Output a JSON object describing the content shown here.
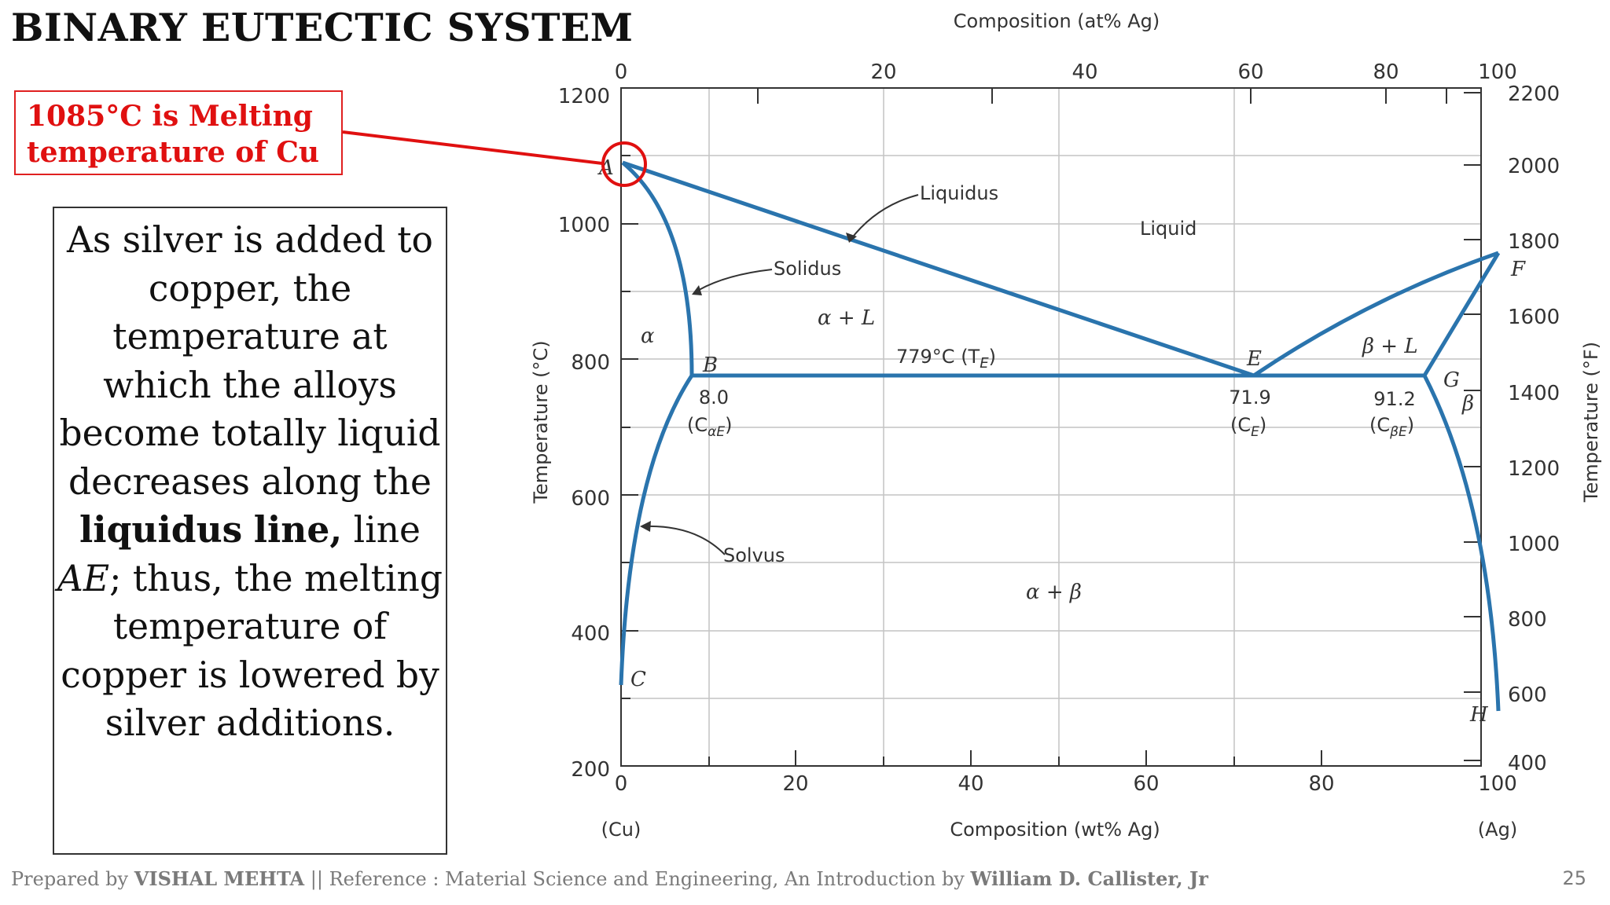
{
  "slide": {
    "title": "BINARY EUTECTIC SYSTEM",
    "callout_line1": "1085°C is Melting",
    "callout_line2": "temperature of Cu",
    "note": {
      "p1": "As silver is added to copper, the temperature at which the alloys become totally liquid decreases along the ",
      "bold1": "liquidus",
      "bold2": "line,",
      "p2": " line ",
      "italic": "AE",
      "p3": "; thus, the melting temperature of copper is lowered by silver additions."
    },
    "footer": {
      "prefix": "Prepared by ",
      "author": "VISHAL MEHTA",
      "middle": " || Reference : Material Science and Engineering, An Introduction by ",
      "ref_author": "William D. Callister, Jr"
    },
    "page_number": "25"
  },
  "diagram": {
    "top_axis_title": "Composition (at% Ag)",
    "top_ticks": [
      "0",
      "20",
      "40",
      "60",
      "80",
      "100"
    ],
    "bottom_axis_title": "Composition (wt% Ag)",
    "bottom_ticks": [
      "0",
      "20",
      "40",
      "60",
      "80",
      "100"
    ],
    "bottom_end_left": "(Cu)",
    "bottom_end_right": "(Ag)",
    "left_axis_title": "Temperature (°C)",
    "left_ticks": [
      "1200",
      "1000",
      "800",
      "600",
      "400",
      "200"
    ],
    "right_axis_title": "Temperature (°F)",
    "right_ticks": [
      "2200",
      "2000",
      "1800",
      "1600",
      "1400",
      "1200",
      "1000",
      "800",
      "600",
      "400"
    ],
    "labels": {
      "liquidus": "Liquidus",
      "solidus": "Solidus",
      "solvus": "Solvus",
      "liquid": "Liquid",
      "alpha": "α",
      "alpha_l": "α + L",
      "beta_l": "β + L",
      "beta": "β",
      "alpha_beta": "α + β",
      "eutectic_temp": "779°C (T",
      "eutectic_temp_sub": "E",
      "eutectic_temp_close": ")",
      "pt_a": "A",
      "pt_b": "B",
      "pt_c": "C",
      "pt_e": "E",
      "pt_f": "F",
      "pt_g": "G",
      "pt_h": "H",
      "c_alpha_value": "8.0",
      "c_alpha_label": "(C",
      "c_alpha_sub": "αE",
      "c_e_value": "71.9",
      "c_e_label": "(C",
      "c_e_sub": "E",
      "c_beta_value": "91.2",
      "c_beta_label": "(C",
      "c_beta_sub": "βE",
      "close_paren": ")"
    },
    "colors": {
      "phase_line": "#2a74ad",
      "callout_red": "#e01010",
      "grid": "#c4c4c4"
    }
  }
}
